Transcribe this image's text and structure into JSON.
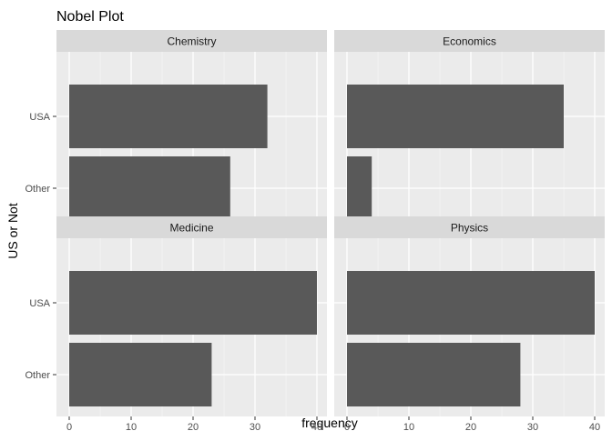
{
  "chart_data": {
    "type": "bar",
    "orientation": "horizontal",
    "title": "Nobel Plot",
    "xlabel": "frequency",
    "ylabel": "US or Not",
    "categories": [
      "USA",
      "Other"
    ],
    "xlim": [
      0,
      40
    ],
    "xticks": [
      0,
      10,
      20,
      30,
      40
    ],
    "grid": true,
    "legend": "none",
    "bar_color": "#595959",
    "panel_bg": "#EBEBEB",
    "strip_bg": "#D9D9D9",
    "facets": [
      {
        "name": "Chemistry",
        "values": [
          32,
          26
        ]
      },
      {
        "name": "Economics",
        "values": [
          35,
          4
        ]
      },
      {
        "name": "Medicine",
        "values": [
          40,
          23
        ]
      },
      {
        "name": "Physics",
        "values": [
          40,
          28
        ]
      }
    ]
  }
}
